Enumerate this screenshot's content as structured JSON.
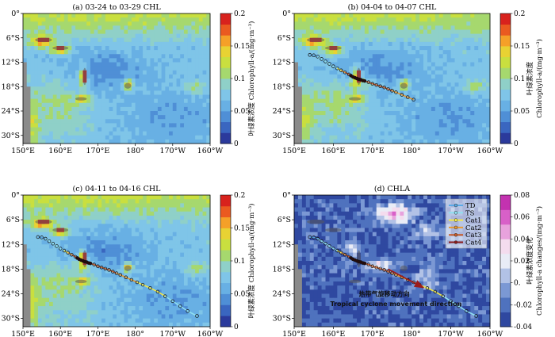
{
  "figure": {
    "colors": {
      "chl": [
        "#2b3a9c",
        "#3a66c0",
        "#4f8fd6",
        "#68b0e4",
        "#7fc5e8",
        "#8fd0c8",
        "#a6d86e",
        "#c9df3f",
        "#e8d233",
        "#f5a028",
        "#ea5a20",
        "#d8221d"
      ],
      "chla": [
        "#2f48a0",
        "#4f72be",
        "#7b98d4",
        "#b2c2e6",
        "#e9ecf6",
        "#f4dcee",
        "#e8a2dd",
        "#d860c8",
        "#c332b0"
      ],
      "land": "#8a8a8a",
      "track": [
        "#5aa9e6",
        "#8fdff0",
        "#f2e84a",
        "#e69a33",
        "#c75a27",
        "#8a1b1b"
      ]
    },
    "map_extent": {
      "lon": [
        150,
        200
      ],
      "lat": [
        -32,
        0
      ]
    },
    "x_ticks": [
      {
        "lon": 150,
        "label": "150°E"
      },
      {
        "lon": 160,
        "label": "160°E"
      },
      {
        "lon": 170,
        "label": "170°E"
      },
      {
        "lon": 180,
        "label": "180°"
      },
      {
        "lon": 190,
        "label": "170°W"
      },
      {
        "lon": 200,
        "label": "160°W"
      }
    ],
    "y_ticks": [
      {
        "lat": 0,
        "label": "0°"
      },
      {
        "lat": -6,
        "label": "6°S"
      },
      {
        "lat": -12,
        "label": "12°S"
      },
      {
        "lat": -18,
        "label": "18°S"
      },
      {
        "lat": -24,
        "label": "24°S"
      },
      {
        "lat": -30,
        "label": "30°S"
      }
    ],
    "track": {
      "points": [
        {
          "lon": 154.0,
          "lat": -10.2,
          "cat": "TD"
        },
        {
          "lon": 155.0,
          "lat": -10.3,
          "cat": "TD"
        },
        {
          "lon": 156.0,
          "lat": -10.6,
          "cat": "TD"
        },
        {
          "lon": 157.0,
          "lat": -11.2,
          "cat": "TS"
        },
        {
          "lon": 158.0,
          "lat": -11.8,
          "cat": "TS"
        },
        {
          "lon": 159.0,
          "lat": -12.4,
          "cat": "TS"
        },
        {
          "lon": 160.0,
          "lat": -13.0,
          "cat": "TS"
        },
        {
          "lon": 161.0,
          "lat": -13.5,
          "cat": "TS"
        },
        {
          "lon": 162.0,
          "lat": -14.0,
          "cat": "Cat1"
        },
        {
          "lon": 163.0,
          "lat": -14.5,
          "cat": "Cat2"
        },
        {
          "lon": 164.0,
          "lat": -15.0,
          "cat": "Cat3"
        },
        {
          "lon": 164.5,
          "lat": -15.3,
          "cat": "Cat4"
        },
        {
          "lon": 165.0,
          "lat": -15.6,
          "cat": "Cat4"
        },
        {
          "lon": 165.5,
          "lat": -15.8,
          "cat": "Cat4"
        },
        {
          "lon": 166.0,
          "lat": -16.0,
          "cat": "Cat4"
        },
        {
          "lon": 166.5,
          "lat": -16.2,
          "cat": "Cat4"
        },
        {
          "lon": 167.0,
          "lat": -16.3,
          "cat": "Cat4"
        },
        {
          "lon": 167.5,
          "lat": -16.5,
          "cat": "Cat4"
        },
        {
          "lon": 168.0,
          "lat": -16.6,
          "cat": "Cat4"
        },
        {
          "lon": 169.0,
          "lat": -16.9,
          "cat": "Cat3"
        },
        {
          "lon": 170.0,
          "lat": -17.3,
          "cat": "Cat3"
        },
        {
          "lon": 171.0,
          "lat": -17.6,
          "cat": "Cat3"
        },
        {
          "lon": 172.0,
          "lat": -17.9,
          "cat": "Cat3"
        },
        {
          "lon": 173.0,
          "lat": -18.2,
          "cat": "Cat3"
        },
        {
          "lon": 174.0,
          "lat": -18.6,
          "cat": "Cat3"
        },
        {
          "lon": 175.0,
          "lat": -19.0,
          "cat": "Cat3"
        },
        {
          "lon": 176.0,
          "lat": -19.4,
          "cat": "Cat2"
        },
        {
          "lon": 177.5,
          "lat": -20.0,
          "cat": "Cat2"
        },
        {
          "lon": 179.0,
          "lat": -20.6,
          "cat": "Cat2"
        },
        {
          "lon": 180.5,
          "lat": -21.2,
          "cat": "Cat2"
        },
        {
          "lon": 182.0,
          "lat": -21.8,
          "cat": "Cat1"
        },
        {
          "lon": 184.0,
          "lat": -22.6,
          "cat": "Cat1"
        },
        {
          "lon": 186.0,
          "lat": -23.5,
          "cat": "Cat1"
        },
        {
          "lon": 188.0,
          "lat": -24.6,
          "cat": "Cat1"
        },
        {
          "lon": 190.0,
          "lat": -25.8,
          "cat": "TS"
        },
        {
          "lon": 192.0,
          "lat": -27.0,
          "cat": "TS"
        },
        {
          "lon": 194.0,
          "lat": -28.2,
          "cat": "TS"
        },
        {
          "lon": 196.5,
          "lat": -29.4,
          "cat": "TS"
        }
      ]
    },
    "panels": [
      {
        "id": "a",
        "title": "(a) 03-24 to 03-29 CHL",
        "colorbar": {
          "min": 0,
          "max": 0.2,
          "scheme": "chl",
          "ticks": [
            {
              "v": 0,
              "label": "0"
            },
            {
              "v": 0.05,
              "label": "0.05"
            },
            {
              "v": 0.1,
              "label": "0.1"
            },
            {
              "v": 0.15,
              "label": "0.15"
            },
            {
              "v": 0.2,
              "label": "0.2"
            }
          ],
          "label_line1": "叶绿素浓度 Chlorophyll-a/(mg·m⁻³)",
          "label_line2": ""
        },
        "track_mode": "none",
        "has_legend": false,
        "annotation_cn": "",
        "annotation_en": ""
      },
      {
        "id": "b",
        "title": "(b) 04-04 to 04-07 CHL",
        "colorbar": {
          "min": 0,
          "max": 0.2,
          "scheme": "chl",
          "ticks": [
            {
              "v": 0,
              "label": "0"
            },
            {
              "v": 0.05,
              "label": "0.05"
            },
            {
              "v": 0.1,
              "label": "0.1"
            },
            {
              "v": 0.15,
              "label": "0.15"
            },
            {
              "v": 0.2,
              "label": "0.2"
            }
          ],
          "label_line1": "叶绿素浓度",
          "label_line2": "Chlorophyll-a/(mg·m⁻³)"
        },
        "track_mode": "partial",
        "track_partial_lon": 180.8,
        "has_legend": false,
        "annotation_cn": "",
        "annotation_en": ""
      },
      {
        "id": "c",
        "title": "(c) 04-11 to 04-16 CHL",
        "colorbar": {
          "min": 0,
          "max": 0.2,
          "scheme": "chl",
          "ticks": [
            {
              "v": 0,
              "label": "0"
            },
            {
              "v": 0.05,
              "label": "0.05"
            },
            {
              "v": 0.1,
              "label": "0.1"
            },
            {
              "v": 0.15,
              "label": "0.15"
            },
            {
              "v": 0.2,
              "label": "0.2"
            }
          ],
          "label_line1": "叶绿素浓度 Chlorophyll-a/(mg·m⁻³)",
          "label_line2": ""
        },
        "track_mode": "full",
        "has_legend": false,
        "annotation_cn": "",
        "annotation_en": ""
      },
      {
        "id": "d",
        "title": "(d) CHLA",
        "colorbar": {
          "min": -0.04,
          "max": 0.08,
          "scheme": "chla",
          "ticks": [
            {
              "v": -0.04,
              "label": "-0.04"
            },
            {
              "v": -0.02,
              "label": "-0.02"
            },
            {
              "v": 0,
              "label": "0."
            },
            {
              "v": 0.02,
              "label": "0.02"
            },
            {
              "v": 0.04,
              "label": "0.04"
            },
            {
              "v": 0.06,
              "label": "0.06"
            },
            {
              "v": 0.08,
              "label": "0.08"
            }
          ],
          "label_line1": "叶绿素浓度变化",
          "label_line2": "Chlorophyll-a changes/(mg·m⁻³)"
        },
        "track_mode": "full",
        "has_legend": true,
        "legend": [
          "TD",
          "TS",
          "Cat1",
          "Cat2",
          "Cat3",
          "Cat4"
        ],
        "annotation_cn": "热带气旋移动方向",
        "annotation_en": "Tropical cyclone movement direction"
      }
    ]
  }
}
